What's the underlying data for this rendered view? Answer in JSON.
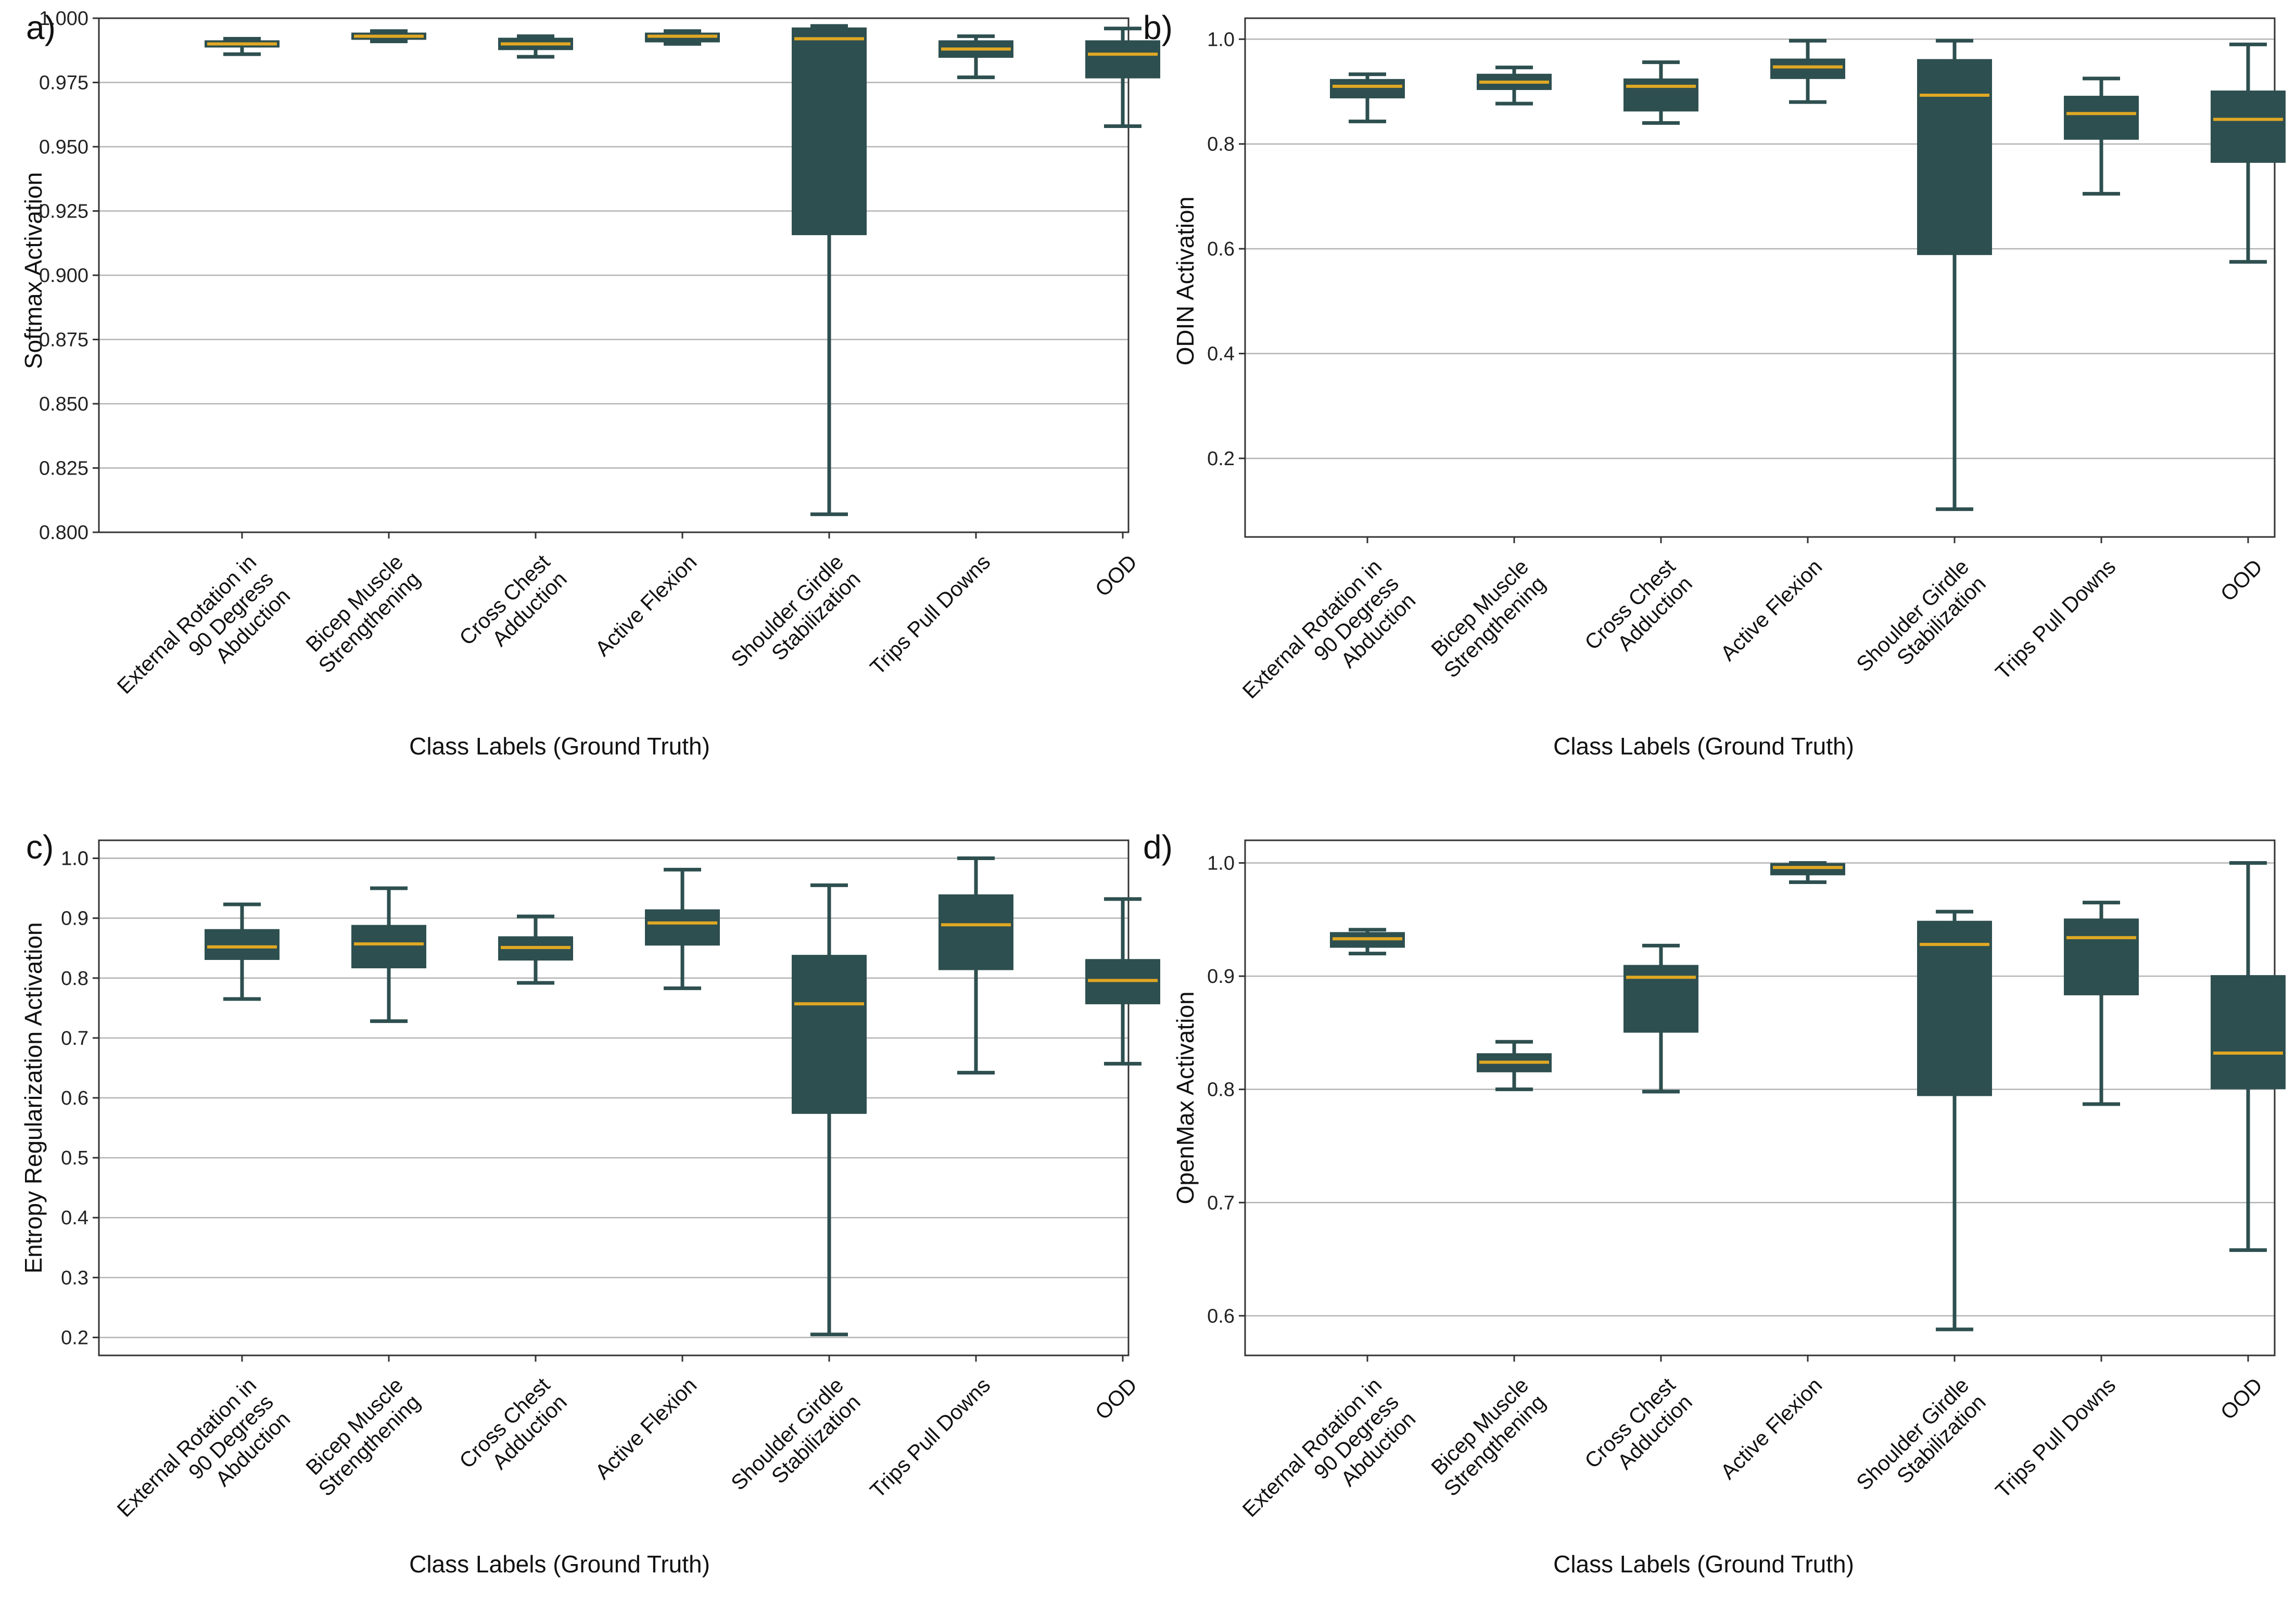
{
  "colors": {
    "box_fill": "#2e4f4f",
    "whisker": "#2e4f4f",
    "median": "#e0a823",
    "grid": "#b4b4b4"
  },
  "chart_data": [
    {
      "panel": "a)",
      "type": "box",
      "title": "",
      "ylabel": "Softmax Activation",
      "xlabel": "Class Labels (Ground Truth)",
      "ylim": [
        0.8,
        1.0
      ],
      "yticks": [
        "1.000",
        "0.975",
        "0.950",
        "0.925",
        "0.900",
        "0.875",
        "0.850",
        "0.825",
        "0.800"
      ],
      "ytick_values": [
        1.0,
        0.975,
        0.95,
        0.925,
        0.9,
        0.875,
        0.85,
        0.825,
        0.8
      ],
      "categories": [
        [
          "External Rotation in",
          "90 Degress",
          "Abduction"
        ],
        [
          "Bicep Muscle",
          "Strengthening"
        ],
        [
          "Cross Chest",
          "Adduction"
        ],
        [
          "Active Flexion"
        ],
        [
          "Shoulder Girdle",
          "Stabilization"
        ],
        [
          "Trips Pull Downs"
        ],
        [
          "OOD"
        ]
      ],
      "boxes": [
        {
          "whislo": 0.986,
          "q1": 0.989,
          "med": 0.99,
          "q3": 0.991,
          "whishi": 0.992
        },
        {
          "whislo": 0.991,
          "q1": 0.992,
          "med": 0.993,
          "q3": 0.994,
          "whishi": 0.995
        },
        {
          "whislo": 0.985,
          "q1": 0.988,
          "med": 0.99,
          "q3": 0.992,
          "whishi": 0.993
        },
        {
          "whislo": 0.99,
          "q1": 0.991,
          "med": 0.993,
          "q3": 0.994,
          "whishi": 0.995
        },
        {
          "whislo": 0.807,
          "q1": 0.916,
          "med": 0.992,
          "q3": 0.996,
          "whishi": 0.997
        },
        {
          "whislo": 0.977,
          "q1": 0.985,
          "med": 0.988,
          "q3": 0.991,
          "whishi": 0.993
        },
        {
          "whislo": 0.958,
          "q1": 0.977,
          "med": 0.986,
          "q3": 0.991,
          "whishi": 0.996
        }
      ]
    },
    {
      "panel": "b)",
      "type": "box",
      "title": "",
      "ylabel": "ODIN Activation",
      "xlabel": "Class Labels (Ground Truth)",
      "ylim": [
        0.05,
        1.04
      ],
      "yticks": [
        "1.0",
        "0.8",
        "0.6",
        "0.4",
        "0.2"
      ],
      "ytick_values": [
        1.0,
        0.8,
        0.6,
        0.4,
        0.2
      ],
      "categories": [
        [
          "External Rotation in",
          "90 Degress",
          "Abduction"
        ],
        [
          "Bicep Muscle",
          "Strengthening"
        ],
        [
          "Cross Chest",
          "Adduction"
        ],
        [
          "Active Flexion"
        ],
        [
          "Shoulder Girdle",
          "Stabilization"
        ],
        [
          "Trips Pull Downs"
        ],
        [
          "OOD"
        ]
      ],
      "boxes": [
        {
          "whislo": 0.843,
          "q1": 0.889,
          "med": 0.91,
          "q3": 0.922,
          "whishi": 0.933
        },
        {
          "whislo": 0.877,
          "q1": 0.905,
          "med": 0.918,
          "q3": 0.932,
          "whishi": 0.946
        },
        {
          "whislo": 0.84,
          "q1": 0.864,
          "med": 0.91,
          "q3": 0.923,
          "whishi": 0.956
        },
        {
          "whislo": 0.88,
          "q1": 0.926,
          "med": 0.947,
          "q3": 0.961,
          "whishi": 0.997
        },
        {
          "whislo": 0.103,
          "q1": 0.59,
          "med": 0.893,
          "q3": 0.96,
          "whishi": 0.997
        },
        {
          "whislo": 0.705,
          "q1": 0.81,
          "med": 0.858,
          "q3": 0.89,
          "whishi": 0.925
        },
        {
          "whislo": 0.575,
          "q1": 0.766,
          "med": 0.847,
          "q3": 0.9,
          "whishi": 0.99
        }
      ]
    },
    {
      "panel": "c)",
      "type": "box",
      "title": "",
      "ylabel": "Entropy Regularization Activation",
      "xlabel": "Class Labels (Ground Truth)",
      "ylim": [
        0.17,
        1.03
      ],
      "yticks": [
        "1.0",
        "1.0",
        "0.9",
        "0.8",
        "0.7",
        "0.6",
        "0.5",
        "0.4",
        "0.3",
        "0.2"
      ],
      "ytick_values": [
        1.0,
        1.0,
        0.9,
        0.8,
        0.7,
        0.6,
        0.5,
        0.4,
        0.3,
        0.2
      ],
      "categories": [
        [
          "External Rotation in",
          "90 Degress",
          "Abduction"
        ],
        [
          "Bicep Muscle",
          "Strengthening"
        ],
        [
          "Cross Chest",
          "Adduction"
        ],
        [
          "Active Flexion"
        ],
        [
          "Shoulder Girdle",
          "Stabilization"
        ],
        [
          "Trips Pull Downs"
        ],
        [
          "OOD"
        ]
      ],
      "boxes": [
        {
          "whislo": 0.765,
          "q1": 0.832,
          "med": 0.852,
          "q3": 0.88,
          "whishi": 0.923
        },
        {
          "whislo": 0.728,
          "q1": 0.818,
          "med": 0.857,
          "q3": 0.887,
          "whishi": 0.95
        },
        {
          "whislo": 0.792,
          "q1": 0.831,
          "med": 0.851,
          "q3": 0.868,
          "whishi": 0.903
        },
        {
          "whislo": 0.783,
          "q1": 0.856,
          "med": 0.892,
          "q3": 0.913,
          "whishi": 0.981
        },
        {
          "whislo": 0.205,
          "q1": 0.575,
          "med": 0.757,
          "q3": 0.837,
          "whishi": 0.955
        },
        {
          "whislo": 0.642,
          "q1": 0.815,
          "med": 0.889,
          "q3": 0.938,
          "whishi": 1.0
        },
        {
          "whislo": 0.657,
          "q1": 0.758,
          "med": 0.796,
          "q3": 0.83,
          "whishi": 0.932
        }
      ]
    },
    {
      "panel": "d)",
      "type": "box",
      "title": "",
      "ylabel": "OpenMax Activation",
      "xlabel": "Class Labels (Ground Truth)",
      "ylim": [
        0.565,
        1.02
      ],
      "yticks": [
        "1.0",
        "0.9",
        "0.8",
        "0.7",
        "0.6"
      ],
      "ytick_values": [
        1.0,
        0.9,
        0.8,
        0.7,
        0.6
      ],
      "categories": [
        [
          "External Rotation in",
          "90 Degress",
          "Abduction"
        ],
        [
          "Bicep Muscle",
          "Strengthening"
        ],
        [
          "Cross Chest",
          "Adduction"
        ],
        [
          "Active Flexion"
        ],
        [
          "Shoulder Girdle",
          "Stabilization"
        ],
        [
          "Trips Pull Downs"
        ],
        [
          "OOD"
        ]
      ],
      "boxes": [
        {
          "whislo": 0.92,
          "q1": 0.926,
          "med": 0.933,
          "q3": 0.938,
          "whishi": 0.941
        },
        {
          "whislo": 0.8,
          "q1": 0.816,
          "med": 0.824,
          "q3": 0.831,
          "whishi": 0.842
        },
        {
          "whislo": 0.798,
          "q1": 0.851,
          "med": 0.899,
          "q3": 0.909,
          "whishi": 0.927
        },
        {
          "whislo": 0.983,
          "q1": 0.99,
          "med": 0.996,
          "q3": 0.999,
          "whishi": 1.0
        },
        {
          "whislo": 0.588,
          "q1": 0.795,
          "med": 0.928,
          "q3": 0.948,
          "whishi": 0.957
        },
        {
          "whislo": 0.787,
          "q1": 0.884,
          "med": 0.934,
          "q3": 0.95,
          "whishi": 0.965
        },
        {
          "whislo": 0.658,
          "q1": 0.801,
          "med": 0.832,
          "q3": 0.9,
          "whishi": 1.0
        }
      ]
    }
  ]
}
